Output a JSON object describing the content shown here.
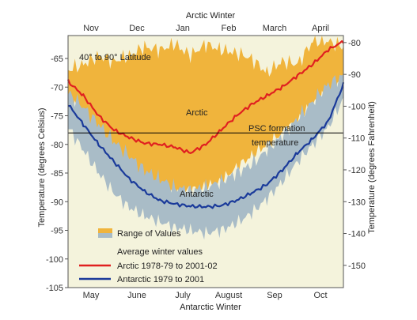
{
  "chart_data": {
    "type": "area",
    "top_axis_title": "Arctic  Winter",
    "bottom_axis_title": "Antarctic Winter",
    "ylabel_left": "Temperature (degrees Celsius)",
    "ylabel_right": "Temperature (degrees Fahrenheit)",
    "top_months": [
      "Nov",
      "Dec",
      "Jan",
      "Feb",
      "March",
      "April"
    ],
    "bottom_months": [
      "May",
      "June",
      "July",
      "August",
      "Sep",
      "Oct"
    ],
    "x_range": [
      0,
      180
    ],
    "x_units": "days since start of winter",
    "ylim": [
      -105,
      -61
    ],
    "yticks_c": [
      -65,
      -70,
      -75,
      -80,
      -85,
      -90,
      -95,
      -100,
      -105
    ],
    "yticks_f": [
      -80,
      -90,
      -100,
      -110,
      -120,
      -130,
      -140,
      -150
    ],
    "latitude_note": "40° to 90° Latitude",
    "psc_label_line1": "PSC formation",
    "psc_label_line2": "temperature",
    "psc_value_c": -78,
    "arctic_label": "Arctic",
    "antarctic_label": "Antarctic",
    "legend": {
      "range_label": "Range of Values",
      "average_title": "Average winter values",
      "arctic_label": "Arctic 1978-79 to 2001-02",
      "antarctic_label": "Antarctic 1979 to 2001"
    },
    "grid": false,
    "series": [
      {
        "name": "Arctic 1978-79 to 2001-02",
        "color": "#e02020",
        "x": [
          0,
          10,
          20,
          30,
          40,
          50,
          60,
          70,
          80,
          90,
          100,
          110,
          120,
          130,
          140,
          150,
          160,
          170,
          180
        ],
        "values": [
          -69,
          -71.5,
          -75,
          -77.5,
          -78.8,
          -79.8,
          -80,
          -80.5,
          -81.5,
          -80,
          -77.5,
          -75,
          -73,
          -71.5,
          -70,
          -68,
          -66,
          -63.5,
          -62
        ]
      },
      {
        "name": "Antarctic 1979 to 2001",
        "color": "#1a3a9a",
        "x": [
          0,
          10,
          20,
          30,
          40,
          50,
          60,
          70,
          80,
          90,
          100,
          110,
          120,
          130,
          140,
          150,
          160,
          170,
          180
        ],
        "values": [
          -73,
          -76.5,
          -80,
          -83,
          -86,
          -88.2,
          -89.8,
          -90.4,
          -90.8,
          -90.9,
          -90.7,
          -89.8,
          -88.5,
          -87,
          -84.5,
          -81.5,
          -79,
          -76,
          -69.5
        ]
      }
    ],
    "ranges": [
      {
        "name": "Arctic range of values",
        "color": "#f0b43c",
        "x": [
          0,
          10,
          20,
          30,
          40,
          50,
          60,
          70,
          80,
          90,
          100,
          110,
          120,
          130,
          140,
          150,
          160,
          170,
          180
        ],
        "upper": [
          -67,
          -66,
          -64.5,
          -65.5,
          -64.5,
          -63,
          -63.5,
          -62.5,
          -64.5,
          -62.5,
          -63.5,
          -64,
          -65,
          -67.5,
          -65.5,
          -66,
          -62,
          -62,
          -63
        ],
        "lower": [
          -72,
          -75,
          -79,
          -83,
          -86,
          -87,
          -88,
          -89,
          -88,
          -87.5,
          -86.5,
          -84,
          -82,
          -80,
          -78,
          -76,
          -73,
          -71,
          -69
        ]
      },
      {
        "name": "Antarctic range of values",
        "color": "#a9bcc7",
        "x": [
          0,
          10,
          20,
          30,
          40,
          50,
          60,
          70,
          80,
          90,
          100,
          110,
          120,
          130,
          140,
          150,
          160,
          170,
          180
        ],
        "upper": [
          -71,
          -73.5,
          -76.5,
          -79.5,
          -82,
          -84.5,
          -86,
          -87.5,
          -88,
          -87.5,
          -86.5,
          -85,
          -83.5,
          -81,
          -78.5,
          -75.5,
          -72.5,
          -69.5,
          -68
        ],
        "lower": [
          -77,
          -81,
          -85,
          -88.5,
          -91,
          -92.5,
          -93.5,
          -94.5,
          -95,
          -95.5,
          -95,
          -93.8,
          -92,
          -89.5,
          -86.5,
          -83,
          -80,
          -77,
          -72
        ]
      }
    ]
  }
}
